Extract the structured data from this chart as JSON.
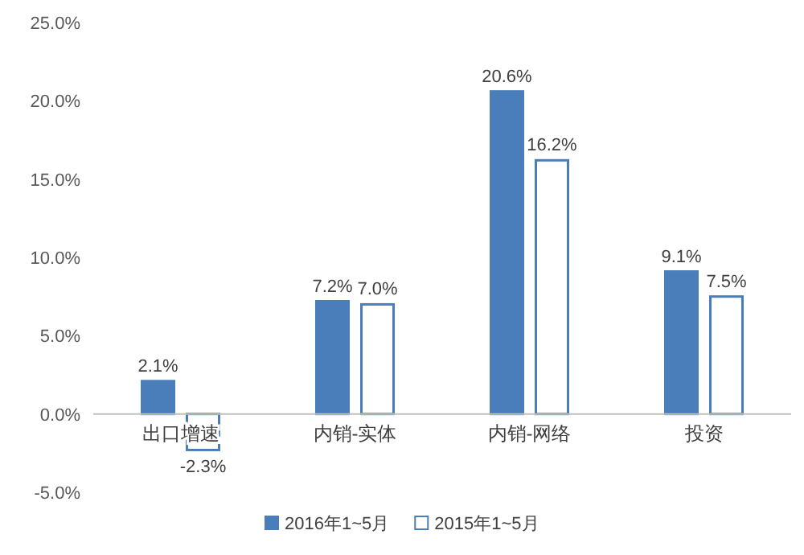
{
  "chart_data": {
    "type": "bar",
    "categories": [
      "出口增速",
      "内销-实体",
      "内销-网络",
      "投资"
    ],
    "series": [
      {
        "name": "2016年1~5月",
        "color": "#4a7ebb",
        "values": [
          2.1,
          7.2,
          20.6,
          9.1
        ],
        "value_labels": [
          "2.1%",
          "7.2%",
          "20.6%",
          "9.1%"
        ]
      },
      {
        "name": "2015年1~5月",
        "color": "#ffffff",
        "values": [
          -2.3,
          7.0,
          16.2,
          7.5
        ],
        "value_labels": [
          "-2.3%",
          "7.0%",
          "16.2%",
          "7.5%"
        ]
      }
    ],
    "ylim": [
      -5,
      25
    ],
    "yticks": [
      {
        "value": -5,
        "label": "-5.0%"
      },
      {
        "value": 0,
        "label": "0.0%"
      },
      {
        "value": 5,
        "label": "5.0%"
      },
      {
        "value": 10,
        "label": "10.0%"
      },
      {
        "value": 15,
        "label": "15.0%"
      },
      {
        "value": 20,
        "label": "20.0%"
      },
      {
        "value": 25,
        "label": "25.0%"
      }
    ],
    "grid": false,
    "legend": "bottom"
  }
}
